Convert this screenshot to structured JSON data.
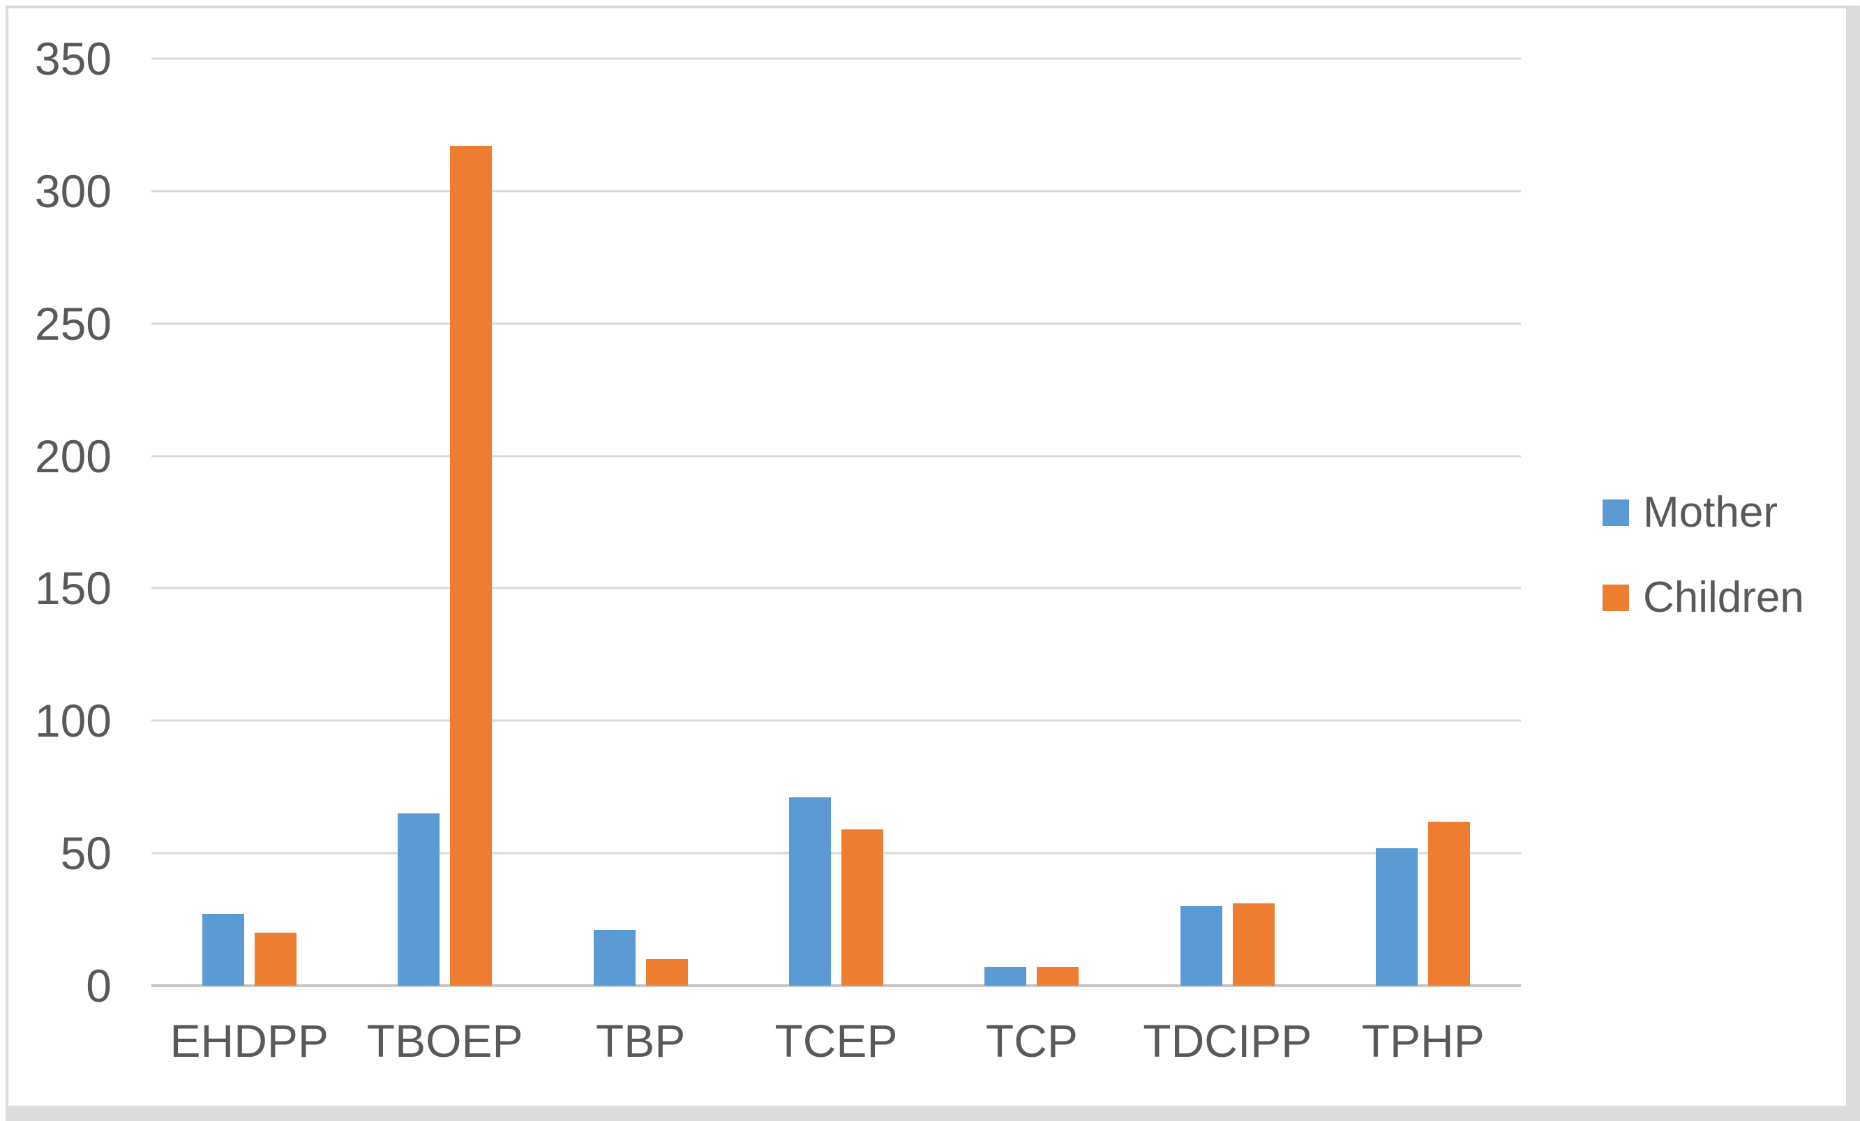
{
  "chart_data": {
    "type": "bar",
    "title": "",
    "xlabel": "",
    "ylabel": "",
    "categories": [
      "EHDPP",
      "TBOEP",
      "TBP",
      "TCEP",
      "TCP",
      "TDCIPP",
      "TPHP"
    ],
    "series": [
      {
        "name": "Mother",
        "color": "#5B9BD5",
        "values": [
          27,
          65,
          21,
          71,
          7,
          30,
          52
        ]
      },
      {
        "name": "Children",
        "color": "#ED7D31",
        "values": [
          20,
          317,
          10,
          59,
          7,
          31,
          62
        ]
      }
    ],
    "ylim": [
      0,
      350
    ],
    "ytick_step": 50,
    "ytick_labels": [
      "0",
      "50",
      "100",
      "150",
      "200",
      "250",
      "300",
      "350"
    ],
    "grid": true,
    "legend_position": "right",
    "colors": {
      "gridline": "#D9D9D9",
      "axis_line": "#C6C6C6",
      "text": "#595959",
      "background": "#FFFFFF",
      "border": "#D8D8D8"
    }
  }
}
